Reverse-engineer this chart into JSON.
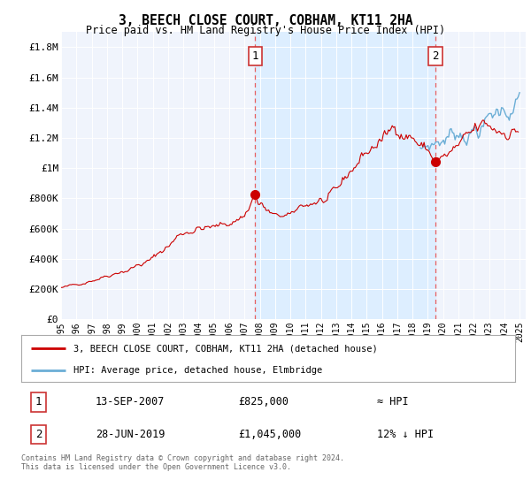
{
  "title": "3, BEECH CLOSE COURT, COBHAM, KT11 2HA",
  "subtitle": "Price paid vs. HM Land Registry's House Price Index (HPI)",
  "ylabel_ticks": [
    "£0",
    "£200K",
    "£400K",
    "£600K",
    "£800K",
    "£1M",
    "£1.2M",
    "£1.4M",
    "£1.6M",
    "£1.8M"
  ],
  "yvalues": [
    0,
    200000,
    400000,
    600000,
    800000,
    1000000,
    1200000,
    1400000,
    1600000,
    1800000
  ],
  "ylim": [
    0,
    1900000
  ],
  "hpi_color": "#6baed6",
  "price_color": "#CC0000",
  "dashed_color": "#e86060",
  "shade_color": "#ddeeff",
  "legend_label_price": "3, BEECH CLOSE COURT, COBHAM, KT11 2HA (detached house)",
  "legend_label_hpi": "HPI: Average price, detached house, Elmbridge",
  "sale1_date": "13-SEP-2007",
  "sale1_price": "£825,000",
  "sale1_hpi": "≈ HPI",
  "sale2_date": "28-JUN-2019",
  "sale2_price": "£1,045,000",
  "sale2_hpi": "12% ↓ HPI",
  "footnote": "Contains HM Land Registry data © Crown copyright and database right 2024.\nThis data is licensed under the Open Government Licence v3.0.",
  "sale1_x": 2007.71,
  "sale1_y": 825000,
  "sale2_x": 2019.49,
  "sale2_y": 1045000,
  "hpi_start_x": 2018.5,
  "xtick_years": [
    1995,
    1996,
    1997,
    1998,
    1999,
    2000,
    2001,
    2002,
    2003,
    2004,
    2005,
    2006,
    2007,
    2008,
    2009,
    2010,
    2011,
    2012,
    2013,
    2014,
    2015,
    2016,
    2017,
    2018,
    2019,
    2020,
    2021,
    2022,
    2023,
    2024,
    2025
  ],
  "background_color": "#e8eef8",
  "chart_bg": "#f0f4fc"
}
